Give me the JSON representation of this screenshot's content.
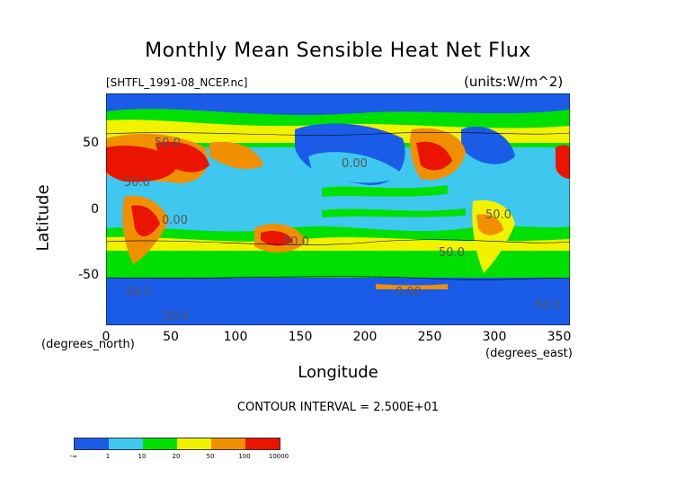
{
  "title": "Monthly Mean Sensible Heat Net Flux",
  "file_label": "[SHTFL_1991-08_NCEP.nc]",
  "units_label": "(units:W/m^2)",
  "y_axis": {
    "label": "Latitude",
    "unit_label": "(degrees_north)",
    "ticks": [
      "50",
      "0",
      "-50"
    ]
  },
  "x_axis": {
    "label": "Longitude",
    "unit_label": "(degrees_east)",
    "ticks": [
      "0",
      "50",
      "100",
      "150",
      "200",
      "250",
      "300",
      "350"
    ]
  },
  "contour_interval": "CONTOUR INTERVAL = 2.500E+01",
  "contour_labels": [
    "50.0",
    "0.00",
    "50.0",
    "0.00",
    "50.0",
    "50.0",
    "50.0",
    "0.00",
    "50.0",
    "50.0",
    "50.0"
  ],
  "colorbar": {
    "colors": [
      "#1a5ce8",
      "#3ec8f0",
      "#00e000",
      "#f2f200",
      "#f09000",
      "#ea1400"
    ],
    "labels": [
      "-∞",
      "1",
      "10",
      "20",
      "50",
      "100",
      "10000"
    ]
  },
  "colors": {
    "ocean_low": "#1a5ce8",
    "ocean_mid": "#3ec8f0",
    "green": "#00e000",
    "yellow": "#f2f200",
    "orange": "#f09000",
    "red": "#ea1400"
  }
}
